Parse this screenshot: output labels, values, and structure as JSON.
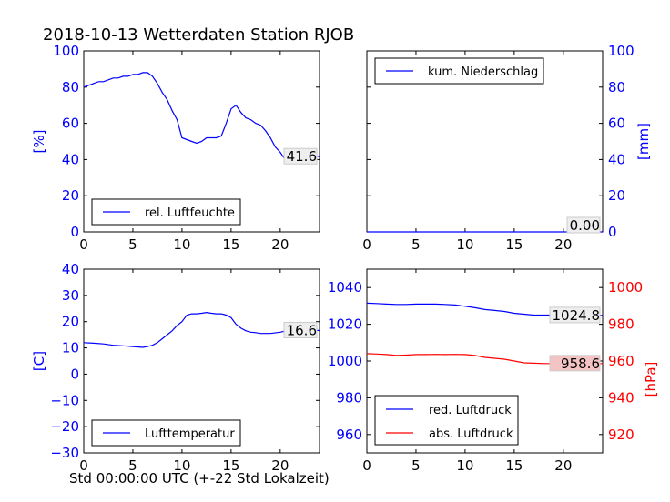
{
  "title": "2018-10-13 Wetterdaten Station RJOB",
  "xlabel": "Std 00:00:00 UTC (+-22 Std Lokalzeit)",
  "colors": {
    "primary": "#0000ff",
    "secondary": "#ff0000",
    "axis": "#000000"
  },
  "chart_data": [
    {
      "id": "humidity",
      "type": "line",
      "position": "top-left",
      "xlim": [
        0,
        24
      ],
      "ylim": [
        0,
        100
      ],
      "xticks": [
        0,
        5,
        10,
        15,
        20
      ],
      "yticks": [
        0,
        20,
        40,
        60,
        80,
        100
      ],
      "ylabel": "[%]",
      "legend": {
        "label": "rel. Luftfeuchte",
        "loc": "lower-left"
      },
      "last_value_label": "41.6",
      "series": [
        {
          "name": "rel. Luftfeuchte",
          "color": "#0000ff",
          "x": [
            0,
            0.5,
            1,
            1.5,
            2,
            2.5,
            3,
            3.5,
            4,
            4.5,
            5,
            5.5,
            6,
            6.5,
            7,
            7.5,
            8,
            8.5,
            9,
            9.5,
            10,
            10.5,
            11,
            11.5,
            12,
            12.5,
            13,
            13.5,
            14,
            14.5,
            15,
            15.5,
            16,
            16.5,
            17,
            17.5,
            18,
            18.5,
            19,
            19.5,
            20,
            20.5,
            21,
            21.5,
            22,
            22.5,
            23,
            23.5,
            24
          ],
          "y": [
            80,
            81,
            82,
            83,
            83,
            84,
            85,
            85,
            86,
            86,
            87,
            87,
            88,
            88,
            86,
            82,
            77,
            73,
            67,
            62,
            52,
            51,
            50,
            49,
            50,
            52,
            52,
            52,
            53,
            60,
            68,
            70,
            66,
            63,
            62,
            60,
            59,
            56,
            52,
            47,
            44,
            40,
            42,
            44,
            43,
            42,
            43,
            42,
            41.6
          ]
        }
      ]
    },
    {
      "id": "precipitation",
      "type": "line",
      "position": "top-right",
      "xlim": [
        0,
        24
      ],
      "ylim": [
        0,
        100
      ],
      "xticks": [
        0,
        5,
        10,
        15,
        20
      ],
      "yticks": [
        0,
        20,
        40,
        60,
        80,
        100
      ],
      "ylabel": "[mm]",
      "legend": {
        "label": "kum. Niederschlag",
        "loc": "upper-left"
      },
      "last_value_label": "0.00",
      "series": [
        {
          "name": "kum. Niederschlag",
          "color": "#0000ff",
          "x": [
            0,
            24
          ],
          "y": [
            0,
            0
          ]
        }
      ]
    },
    {
      "id": "temperature",
      "type": "line",
      "position": "bottom-left",
      "xlim": [
        0,
        24
      ],
      "ylim": [
        -30,
        40
      ],
      "xticks": [
        0,
        5,
        10,
        15,
        20
      ],
      "yticks": [
        -30,
        -20,
        -10,
        0,
        10,
        20,
        30,
        40
      ],
      "ylabel": "[C]",
      "legend": {
        "label": "Lufttemperatur",
        "loc": "lower-left"
      },
      "last_value_label": "16.6",
      "series": [
        {
          "name": "Lufttemperatur",
          "color": "#0000ff",
          "x": [
            0,
            1,
            2,
            3,
            4,
            5,
            6,
            6.5,
            7,
            7.5,
            8,
            8.5,
            9,
            9.5,
            10,
            10.5,
            11,
            11.5,
            12,
            12.5,
            13,
            13.5,
            14,
            14.5,
            15,
            15.5,
            16,
            16.5,
            17,
            17.5,
            18,
            19,
            20,
            21,
            22,
            23,
            24
          ],
          "y": [
            12,
            11.8,
            11.5,
            11,
            10.8,
            10.5,
            10.2,
            10.5,
            11,
            12,
            13.5,
            15,
            16.5,
            18.5,
            20,
            22.5,
            23,
            23,
            23.2,
            23.5,
            23.2,
            23,
            23,
            22.5,
            21.5,
            19,
            17.5,
            16.5,
            16,
            15.8,
            15.5,
            15.5,
            16,
            16.8,
            17.2,
            16.8,
            16.6
          ]
        }
      ]
    },
    {
      "id": "pressure",
      "type": "line",
      "position": "bottom-right",
      "xlim": [
        0,
        24
      ],
      "ylim": [
        950,
        1050
      ],
      "ylim_right": [
        910,
        1010
      ],
      "xticks": [
        0,
        5,
        10,
        15,
        20
      ],
      "yticks": [
        960,
        980,
        1000,
        1020,
        1040
      ],
      "yticks_right": [
        920,
        940,
        960,
        980,
        1000
      ],
      "ylabel_right": "[hPa]",
      "legend": {
        "labels": [
          "red. Luftdruck",
          "abs. Luftdruck"
        ],
        "loc": "lower-left"
      },
      "value_labels": [
        "1024.8",
        "958.6"
      ],
      "series": [
        {
          "name": "red. Luftdruck",
          "color": "#0000ff",
          "axis": "left",
          "x": [
            0,
            1,
            2,
            3,
            4,
            5,
            6,
            7,
            8,
            9,
            10,
            11,
            12,
            13,
            14,
            15,
            16,
            17,
            18,
            19,
            20,
            21,
            22,
            23,
            24
          ],
          "y": [
            1031.5,
            1031.3,
            1031,
            1030.8,
            1030.8,
            1031,
            1031,
            1031,
            1030.8,
            1030.5,
            1029.8,
            1029,
            1028,
            1027.5,
            1027,
            1026,
            1025.5,
            1025,
            1025,
            1025,
            1024.9,
            1024.8,
            1024.8,
            1024.8,
            1024.8
          ]
        },
        {
          "name": "abs. Luftdruck",
          "color": "#ff0000",
          "axis": "right",
          "x": [
            0,
            1,
            2,
            3,
            4,
            5,
            6,
            7,
            8,
            9,
            10,
            11,
            12,
            13,
            14,
            15,
            16,
            17,
            18,
            19,
            20,
            21,
            22,
            23,
            24
          ],
          "y": [
            964,
            963.8,
            963.5,
            963,
            963.2,
            963.5,
            963.5,
            963.6,
            963.5,
            963.6,
            963.5,
            963,
            962,
            961.5,
            961,
            960,
            959,
            958.8,
            958.6,
            958.6,
            958.6,
            958.6,
            958.6,
            958.6,
            958.6
          ]
        }
      ]
    }
  ]
}
